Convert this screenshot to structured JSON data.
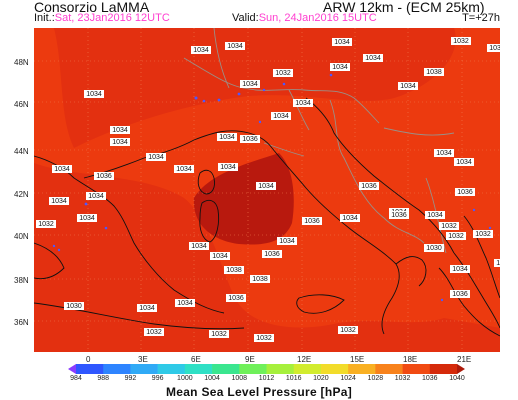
{
  "header": {
    "organization": "Consorzio LaMMA",
    "init_label": "Init.:",
    "init_value": "Sat, 23Jan2016  12UTC",
    "model": "ARW 12km - (ECM 25km)",
    "valid_label": "Valid:",
    "valid_value": "Sun, 24Jan2016  15UTC",
    "lead_time": "T=+27h"
  },
  "map": {
    "background_color": "#ec3a0f",
    "inner_color": "#e33010",
    "high_color": "#b8190e",
    "land_line_color": "#111111",
    "border_color": "#9a8f87",
    "grid_color": "#f07a4e"
  },
  "latitude_labels": [
    "48N",
    "46N",
    "44N",
    "42N",
    "40N",
    "38N",
    "36N"
  ],
  "longitude_labels": [
    "0",
    "3E",
    "6E",
    "9E",
    "12E",
    "15E",
    "18E",
    "21E"
  ],
  "isobar_labels": [
    "1034",
    "1034",
    "1034",
    "1032",
    "1034",
    "1034",
    "1032",
    "1034",
    "1034",
    "1034",
    "1034",
    "1034",
    "1034",
    "1034",
    "1034",
    "1036",
    "1034",
    "1034",
    "1036",
    "1034",
    "1034",
    "1034",
    "1034",
    "1036",
    "1036",
    "1034",
    "1034",
    "1034",
    "1032",
    "1032",
    "1038",
    "1036",
    "1032",
    "1030",
    "1030",
    "1030",
    "1034",
    "1032",
    "1034",
    "1034",
    "1034",
    "1034",
    "1038",
    "1038",
    "1036",
    "1036",
    "1034",
    "1036",
    "1034",
    "1032",
    "1032",
    "1034",
    "1036",
    "1034",
    "1034",
    "1032",
    "1032",
    "1032",
    "1030",
    "1032"
  ],
  "colorbar": {
    "levels": [
      "984",
      "988",
      "992",
      "996",
      "1000",
      "1004",
      "1008",
      "1012",
      "1016",
      "1020",
      "1024",
      "1028",
      "1032",
      "1036",
      "1040"
    ],
    "colors": [
      "#8a3cff",
      "#2f57ff",
      "#2e84ff",
      "#30aaf6",
      "#2fcae7",
      "#2fe0c5",
      "#3ae68f",
      "#6ff05a",
      "#a6f03c",
      "#d2ec2e",
      "#f2dc2a",
      "#f9b022",
      "#f8821b",
      "#f14a12",
      "#d52a0b",
      "#ad1a0a"
    ],
    "title": "Mean Sea Level Pressure [hPa]"
  }
}
